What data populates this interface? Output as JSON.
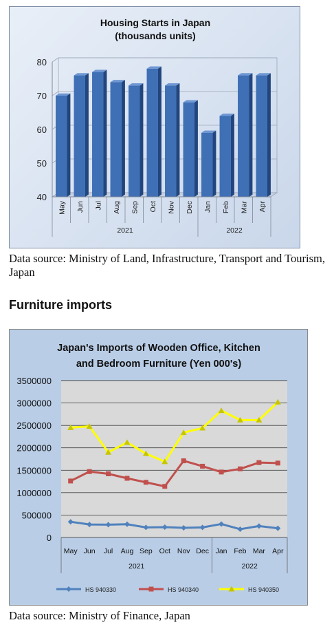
{
  "chart_data": [
    {
      "type": "bar",
      "title": "Housing Starts in Japan",
      "subtitle": "(thousands units)",
      "categories": [
        "May",
        "Jun",
        "Jul",
        "Aug",
        "Sep",
        "Oct",
        "Nov",
        "Dec",
        "Jan",
        "Feb",
        "Mar",
        "Apr"
      ],
      "year_groups": [
        {
          "label": "2021",
          "count": 8
        },
        {
          "label": "2022",
          "count": 4
        }
      ],
      "values": [
        70,
        76,
        77,
        74,
        73,
        78,
        73,
        68,
        59,
        64,
        76,
        76
      ],
      "ylim": [
        40,
        80
      ],
      "yticks": [
        "40",
        "50",
        "60",
        "70",
        "80"
      ],
      "ytick_values": [
        40,
        50,
        60,
        70,
        80
      ],
      "bar_color": "#3f6fb5",
      "grid": true,
      "legend": "none"
    },
    {
      "type": "line",
      "title": "Japan's Imports of  Wooden  Office, Kitchen",
      "subtitle": "and Bedroom Furniture (Yen 000's)",
      "categories": [
        "May",
        "Jun",
        "Jul",
        "Aug",
        "Sep",
        "Oct",
        "Nov",
        "Dec",
        "Jan",
        "Feb",
        "Mar",
        "Apr"
      ],
      "year_groups": [
        {
          "label": "2021",
          "count": 8
        },
        {
          "label": "2022",
          "count": 4
        }
      ],
      "ylim": [
        0,
        3500000
      ],
      "yticks": [
        "0",
        "500000",
        "1000000",
        "1500000",
        "2000000",
        "2500000",
        "3000000",
        "3500000"
      ],
      "ytick_values": [
        0,
        500000,
        1000000,
        1500000,
        2000000,
        2500000,
        3000000,
        3500000
      ],
      "series": [
        {
          "name": "HS 940330",
          "color": "#4f81bd",
          "marker": "diamond",
          "values": [
            350000,
            290000,
            285000,
            295000,
            225000,
            230000,
            215000,
            225000,
            300000,
            185000,
            255000,
            205000
          ]
        },
        {
          "name": "HS 940340",
          "color": "#c0504d",
          "marker": "square",
          "values": [
            1260000,
            1470000,
            1420000,
            1320000,
            1230000,
            1140000,
            1710000,
            1590000,
            1460000,
            1530000,
            1670000,
            1660000
          ]
        },
        {
          "name": "HS 940350",
          "color": "#ffff00",
          "marker": "triangle",
          "values": [
            2450000,
            2480000,
            1900000,
            2120000,
            1870000,
            1690000,
            2340000,
            2440000,
            2830000,
            2620000,
            2620000,
            3020000
          ]
        }
      ],
      "grid": true,
      "legend": "bottom"
    }
  ],
  "text": {
    "source1": "Data source: Ministry of Land, Infrastructure, Transport and Tourism, Japan",
    "heading": "Furniture imports",
    "source2": "Data source: Ministry of Finance, Japan"
  }
}
